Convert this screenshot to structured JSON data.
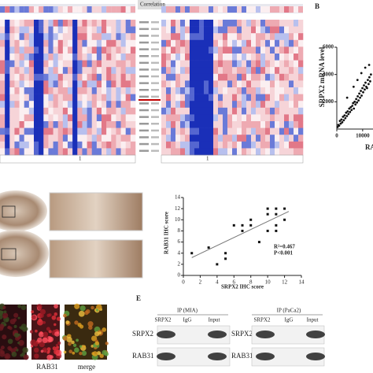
{
  "heatmap": {
    "column_header": "Correlation",
    "left_group_label": "1",
    "right_group_label": "1"
  },
  "panel_b": {
    "type": "scatter",
    "panel_letter": "B",
    "y_label": "SRPX2 mRNA level",
    "x_label": "RAB",
    "xlim": [
      0,
      14000
    ],
    "ylim": [
      0,
      6000
    ],
    "xticks": [
      0,
      10000
    ],
    "yticks": [
      2000,
      4000,
      6000
    ],
    "color": "#111111",
    "x": [
      300,
      600,
      900,
      1200,
      1500,
      1800,
      2100,
      2400,
      2700,
      3000,
      3300,
      3600,
      3900,
      4200,
      4500,
      4800,
      5100,
      5400,
      5700,
      6000,
      6300,
      6600,
      6900,
      7200,
      7500,
      7800,
      8100,
      8400,
      8700,
      9000,
      9300,
      9600,
      9900,
      10200,
      10500,
      10800,
      11100,
      11400,
      11700,
      12000,
      12300,
      12600,
      12900,
      13200,
      4000,
      6500,
      8000,
      9500,
      11000,
      12500
    ],
    "y": [
      150,
      300,
      250,
      600,
      400,
      700,
      500,
      900,
      650,
      1000,
      800,
      1200,
      950,
      1300,
      1100,
      1500,
      1250,
      1600,
      1400,
      1700,
      1900,
      1500,
      2000,
      1800,
      2200,
      1950,
      2400,
      2100,
      2600,
      2300,
      2800,
      2450,
      3000,
      2700,
      3200,
      2900,
      3400,
      3100,
      3000,
      3600,
      3300,
      3800,
      3500,
      4000,
      2300,
      3100,
      3600,
      4100,
      4500,
      4700
    ]
  },
  "panel_d": {
    "type": "scatter",
    "y_label": "RAB31 IHC score",
    "x_label": "SRPX2 IHC score",
    "xlim": [
      0,
      14
    ],
    "ylim": [
      0,
      14
    ],
    "xticks": [
      0,
      2,
      4,
      6,
      8,
      10,
      12,
      14
    ],
    "yticks": [
      0,
      2,
      4,
      6,
      8,
      10,
      12,
      14
    ],
    "color": "#111111",
    "line_color": "#777777",
    "x": [
      1,
      3,
      4,
      5,
      5,
      6,
      7,
      7,
      8,
      8,
      9,
      10,
      10,
      10,
      11,
      11,
      11,
      12,
      12,
      11
    ],
    "y": [
      4,
      5,
      2,
      3,
      4,
      9,
      8,
      9,
      9,
      10,
      6,
      11,
      12,
      8,
      9,
      11,
      12,
      10,
      12,
      8
    ],
    "fit_x": [
      1,
      12.5
    ],
    "fit_y": [
      3.2,
      11.5
    ],
    "annotations": [
      "R²=0.467",
      "P<0.001"
    ]
  },
  "panel_c": {
    "labels": [
      "RAB31",
      "merge"
    ]
  },
  "panel_e": {
    "panel_letter": "E",
    "blots": [
      {
        "title": "IP (MIA)",
        "columns": [
          "SRPX2",
          "IgG",
          "Input"
        ],
        "rows": [
          "SRPX2",
          "RAB31"
        ]
      },
      {
        "title": "IP (PaCa2)",
        "columns": [
          "SRPX2",
          "IgG",
          "Input"
        ],
        "rows": [
          "SRPX2",
          "RAB31"
        ]
      }
    ]
  }
}
